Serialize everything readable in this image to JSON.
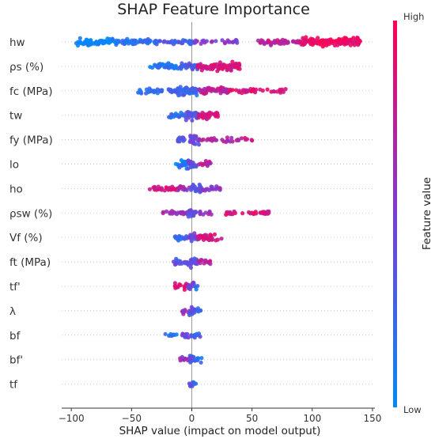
{
  "chart_data": {
    "type": "scatter",
    "subtype": "beeswarm",
    "title": "SHAP Feature Importance",
    "xlabel": "SHAP value (impact on model output)",
    "xlim": [
      -108,
      152
    ],
    "xticks": [
      -100,
      -50,
      0,
      50,
      100,
      150
    ],
    "xtick_labels": [
      "−100",
      "−50",
      "0",
      "50",
      "100",
      "150"
    ],
    "zero_line": true,
    "grid": false,
    "features": [
      "hw",
      "ρs (%)",
      "fc (MPa)",
      "tw",
      "fy (MPa)",
      "lo",
      "ho",
      "ρsw (%)",
      "Vf (%)",
      "ft (MPa)",
      "tf'",
      "λ",
      "bf",
      "bf'",
      "tf"
    ],
    "rows": [
      {
        "feature": "hw",
        "clusters": [
          [
            -96,
            -62,
            0.05,
            0.6
          ],
          [
            -62,
            -30,
            0.15,
            0.45
          ],
          [
            -30,
            2,
            0.3,
            0.35
          ],
          [
            2,
            40,
            0.55,
            0.18
          ],
          [
            55,
            92,
            0.75,
            0.4
          ],
          [
            92,
            140,
            0.95,
            0.75
          ]
        ]
      },
      {
        "feature": "ρs (%)",
        "clusters": [
          [
            -35,
            -10,
            0.15,
            0.45
          ],
          [
            -10,
            5,
            0.3,
            0.6
          ],
          [
            5,
            40,
            0.85,
            0.7
          ]
        ]
      },
      {
        "feature": "fc (MPa)",
        "clusters": [
          [
            -45,
            -15,
            0.2,
            0.35
          ],
          [
            -15,
            5,
            0.25,
            0.8
          ],
          [
            5,
            30,
            0.75,
            0.6
          ],
          [
            30,
            78,
            0.85,
            0.25
          ]
        ]
      },
      {
        "feature": "tw",
        "clusters": [
          [
            -20,
            -5,
            0.2,
            0.35
          ],
          [
            -5,
            5,
            0.35,
            0.8
          ],
          [
            5,
            22,
            0.85,
            0.6
          ]
        ]
      },
      {
        "feature": "fy (MPa)",
        "clusters": [
          [
            -12,
            -2,
            0.3,
            0.4
          ],
          [
            -2,
            6,
            0.45,
            0.8
          ],
          [
            6,
            40,
            0.7,
            0.25
          ],
          [
            40,
            58,
            0.8,
            0.1
          ]
        ]
      },
      {
        "feature": "lo",
        "clusters": [
          [
            -14,
            -3,
            0.1,
            0.7
          ],
          [
            -3,
            5,
            0.4,
            0.85
          ],
          [
            5,
            16,
            0.7,
            0.4
          ]
        ]
      },
      {
        "feature": "ho",
        "clusters": [
          [
            -35,
            -12,
            0.85,
            0.35
          ],
          [
            -12,
            -2,
            0.6,
            0.45
          ],
          [
            -2,
            8,
            0.35,
            0.8
          ],
          [
            8,
            24,
            0.55,
            0.35
          ]
        ]
      },
      {
        "feature": "ρsw (%)",
        "clusters": [
          [
            -25,
            -3,
            0.65,
            0.35
          ],
          [
            -3,
            5,
            0.35,
            0.8
          ],
          [
            5,
            18,
            0.6,
            0.25
          ],
          [
            28,
            66,
            0.85,
            0.25
          ]
        ]
      },
      {
        "feature": "Vf (%)",
        "clusters": [
          [
            -14,
            -3,
            0.25,
            0.45
          ],
          [
            -3,
            5,
            0.45,
            0.8
          ],
          [
            5,
            25,
            0.85,
            0.5
          ]
        ]
      },
      {
        "feature": "ft (MPa)",
        "clusters": [
          [
            -16,
            -3,
            0.35,
            0.45
          ],
          [
            -3,
            5,
            0.35,
            0.85
          ],
          [
            5,
            16,
            0.75,
            0.35
          ]
        ]
      },
      {
        "feature": "tf'",
        "clusters": [
          [
            -14,
            -3,
            0.85,
            0.5
          ],
          [
            -3,
            2,
            0.5,
            0.7
          ],
          [
            2,
            5,
            0.15,
            0.4
          ]
        ]
      },
      {
        "feature": "λ",
        "clusters": [
          [
            -8,
            -2,
            0.6,
            0.5
          ],
          [
            -2,
            4,
            0.35,
            0.8
          ],
          [
            4,
            8,
            0.25,
            0.35
          ]
        ]
      },
      {
        "feature": "bf",
        "clusters": [
          [
            -22,
            -10,
            0.1,
            0.2
          ],
          [
            -8,
            0,
            0.4,
            0.5
          ],
          [
            0,
            3,
            0.25,
            0.8
          ],
          [
            3,
            7,
            0.3,
            0.4
          ]
        ]
      },
      {
        "feature": "bf'",
        "clusters": [
          [
            -10,
            -2,
            0.6,
            0.4
          ],
          [
            -2,
            3,
            0.35,
            0.8
          ],
          [
            3,
            10,
            0.2,
            0.4
          ]
        ]
      },
      {
        "feature": "tf",
        "clusters": [
          [
            -3,
            -1,
            0.4,
            0.4
          ],
          [
            -1,
            2,
            0.3,
            0.8
          ],
          [
            2,
            4,
            0.3,
            0.3
          ]
        ]
      }
    ],
    "colorbar": {
      "label": "Feature value",
      "high_label": "High",
      "low_label": "Low",
      "color_low": "#008afb",
      "color_mid": "#7c3cd6",
      "color_high": "#ff0052"
    }
  }
}
